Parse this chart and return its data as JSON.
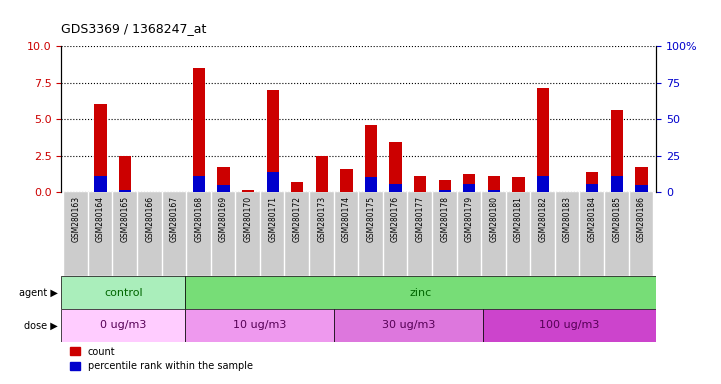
{
  "title": "GDS3369 / 1368247_at",
  "samples": [
    "GSM280163",
    "GSM280164",
    "GSM280165",
    "GSM280166",
    "GSM280167",
    "GSM280168",
    "GSM280169",
    "GSM280170",
    "GSM280171",
    "GSM280172",
    "GSM280173",
    "GSM280174",
    "GSM280175",
    "GSM280176",
    "GSM280177",
    "GSM280178",
    "GSM280179",
    "GSM280180",
    "GSM280181",
    "GSM280182",
    "GSM280183",
    "GSM280184",
    "GSM280185",
    "GSM280186"
  ],
  "count_values": [
    0.0,
    6.0,
    2.5,
    0.0,
    0.0,
    8.5,
    1.7,
    0.15,
    7.0,
    0.7,
    2.5,
    1.6,
    4.6,
    3.4,
    1.1,
    0.8,
    1.2,
    1.1,
    1.0,
    7.1,
    0.0,
    1.4,
    5.6,
    1.7
  ],
  "percentile_values": [
    0,
    11,
    1.5,
    0,
    0,
    11,
    4.5,
    0,
    14,
    0,
    0,
    0,
    10,
    5.5,
    0,
    1.5,
    5.5,
    1.5,
    0,
    11,
    0,
    5.5,
    11,
    4.5
  ],
  "count_color": "#cc0000",
  "percentile_color": "#0000cc",
  "ylim_left": [
    0,
    10
  ],
  "ylim_right": [
    0,
    100
  ],
  "yticks_left": [
    0,
    2.5,
    5.0,
    7.5,
    10.0
  ],
  "yticks_right": [
    0,
    25,
    50,
    75,
    100
  ],
  "agent_groups": [
    {
      "label": "control",
      "start": 0,
      "end": 5,
      "color": "#aaeebb"
    },
    {
      "label": "zinc",
      "start": 5,
      "end": 24,
      "color": "#77dd77"
    }
  ],
  "dose_groups": [
    {
      "label": "0 ug/m3",
      "start": 0,
      "end": 5,
      "color": "#ffccff"
    },
    {
      "label": "10 ug/m3",
      "start": 5,
      "end": 11,
      "color": "#ee99ee"
    },
    {
      "label": "30 ug/m3",
      "start": 11,
      "end": 17,
      "color": "#dd77dd"
    },
    {
      "label": "100 ug/m3",
      "start": 17,
      "end": 24,
      "color": "#cc44cc"
    }
  ],
  "bar_width": 0.5,
  "plot_bg_color": "#ffffff",
  "xtick_bg_color": "#cccccc",
  "left_axis_color": "#cc0000",
  "right_axis_color": "#0000cc",
  "agent_label_color": "#006600",
  "dose_label_color": "#550055"
}
